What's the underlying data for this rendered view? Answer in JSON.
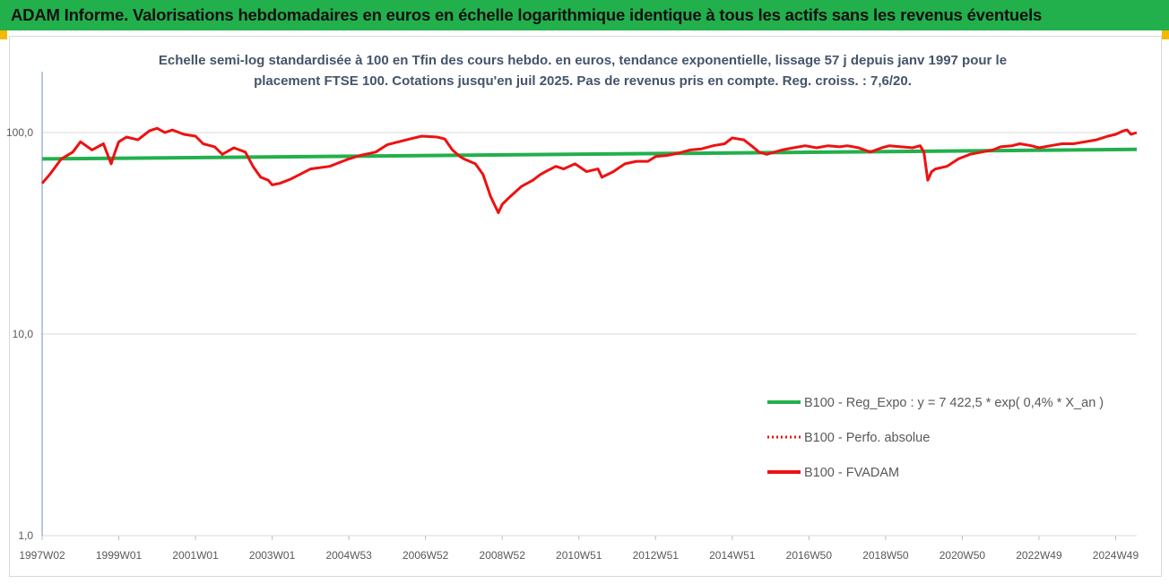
{
  "header": {
    "title": "ADAM Informe. Valorisations hebdomadaires en euros en échelle logarithmique identique à tous les actifs sans les revenus éventuels"
  },
  "colors": {
    "header_bg": "#22b04c",
    "corner": "#f5b800",
    "trend": "#22b04c",
    "fvadam": "#ee1111",
    "perfo": "#ee1111",
    "subtitle": "#44546a",
    "axis_text": "#595959"
  },
  "chart_data": {
    "type": "line",
    "title_line1": "Echelle semi-log standardisée à 100 en Tfin des cours hebdo. en euros, tendance exponentielle, lissage 57 j depuis janv 1997 pour le",
    "title_line2": "placement FTSE 100. Cotations jusqu'en juil 2025. Pas de revenus pris en compte. Reg. croiss. : 7,6/20.",
    "y_scale": "log",
    "ylim": [
      1,
      200
    ],
    "y_ticks": [
      {
        "v": 1,
        "label": "1,0"
      },
      {
        "v": 10,
        "label": "10,0"
      },
      {
        "v": 100,
        "label": "100,0"
      }
    ],
    "x_range": [
      1997.0,
      2025.55
    ],
    "x_ticks": [
      {
        "v": 1997.0,
        "label": "1997W02"
      },
      {
        "v": 1999.0,
        "label": "1999W01"
      },
      {
        "v": 2001.0,
        "label": "2001W01"
      },
      {
        "v": 2003.0,
        "label": "2003W01"
      },
      {
        "v": 2005.0,
        "label": "2004W53"
      },
      {
        "v": 2007.0,
        "label": "2006W52"
      },
      {
        "v": 2009.0,
        "label": "2008W52"
      },
      {
        "v": 2011.0,
        "label": "2010W51"
      },
      {
        "v": 2013.0,
        "label": "2012W51"
      },
      {
        "v": 2015.0,
        "label": "2014W51"
      },
      {
        "v": 2017.0,
        "label": "2016W50"
      },
      {
        "v": 2019.0,
        "label": "2018W50"
      },
      {
        "v": 2021.0,
        "label": "2020W50"
      },
      {
        "v": 2023.0,
        "label": "2022W49"
      },
      {
        "v": 2025.0,
        "label": "2024W49"
      }
    ],
    "grid": "horizontal",
    "legend_position": "bottom-right",
    "series": [
      {
        "name": "B100 - Reg_Expo : y = 7 422,5 * exp( 0,4% *  X_an )",
        "style": "solid",
        "x": [
          1997.0,
          2025.55
        ],
        "values": [
          74.0,
          82.5
        ]
      },
      {
        "name": "B100 - Perfo. absolue",
        "style": "dotted",
        "x": [],
        "values": []
      },
      {
        "name": "B100 - FVADAM",
        "style": "solid",
        "x": [
          1997.0,
          1997.2,
          1997.5,
          1997.8,
          1998.0,
          1998.3,
          1998.6,
          1998.8,
          1998.9,
          1999.0,
          1999.2,
          1999.5,
          1999.8,
          2000.0,
          2000.2,
          2000.4,
          2000.7,
          2001.0,
          2001.2,
          2001.5,
          2001.7,
          2001.9,
          2002.0,
          2002.3,
          2002.5,
          2002.7,
          2002.9,
          2003.0,
          2003.2,
          2003.5,
          2003.8,
          2004.0,
          2004.5,
          2005.0,
          2005.3,
          2005.7,
          2006.0,
          2006.3,
          2006.6,
          2006.9,
          2007.3,
          2007.5,
          2007.7,
          2007.9,
          2008.0,
          2008.3,
          2008.5,
          2008.7,
          2008.9,
          2009.0,
          2009.2,
          2009.5,
          2009.8,
          2010.0,
          2010.2,
          2010.4,
          2010.6,
          2010.9,
          2011.2,
          2011.5,
          2011.6,
          2011.9,
          2012.2,
          2012.5,
          2012.8,
          2013.0,
          2013.3,
          2013.6,
          2013.9,
          2014.2,
          2014.5,
          2014.8,
          2015.0,
          2015.3,
          2015.5,
          2015.7,
          2015.9,
          2016.1,
          2016.3,
          2016.6,
          2016.9,
          2017.2,
          2017.5,
          2017.8,
          2018.0,
          2018.3,
          2018.6,
          2018.9,
          2019.1,
          2019.4,
          2019.7,
          2019.9,
          2020.0,
          2020.1,
          2020.2,
          2020.3,
          2020.6,
          2020.9,
          2021.2,
          2021.5,
          2021.8,
          2022.0,
          2022.3,
          2022.5,
          2022.8,
          2023.0,
          2023.3,
          2023.6,
          2023.9,
          2024.2,
          2024.5,
          2024.8,
          2025.0,
          2025.1,
          2025.2,
          2025.3,
          2025.4,
          2025.55
        ],
        "values": [
          56,
          62,
          74,
          80,
          90,
          82,
          88,
          70,
          80,
          90,
          95,
          92,
          102,
          105,
          100,
          103,
          98,
          96,
          88,
          85,
          78,
          82,
          84,
          80,
          68,
          60,
          58,
          55,
          56,
          59,
          63,
          66,
          68,
          74,
          77,
          80,
          87,
          90,
          93,
          96,
          95,
          93,
          82,
          76,
          74,
          70,
          62,
          48,
          40,
          44,
          48,
          54,
          58,
          62,
          65,
          68,
          66,
          70,
          64,
          66,
          60,
          64,
          70,
          72,
          72,
          76,
          77,
          79,
          82,
          83,
          86,
          88,
          94,
          92,
          86,
          80,
          78,
          80,
          82,
          84,
          86,
          84,
          86,
          85,
          86,
          84,
          80,
          84,
          86,
          85,
          84,
          86,
          80,
          58,
          64,
          66,
          68,
          74,
          78,
          80,
          82,
          85,
          86,
          88,
          86,
          84,
          86,
          88,
          88,
          90,
          92,
          96,
          98,
          100,
          102,
          103,
          98,
          100
        ]
      }
    ]
  }
}
